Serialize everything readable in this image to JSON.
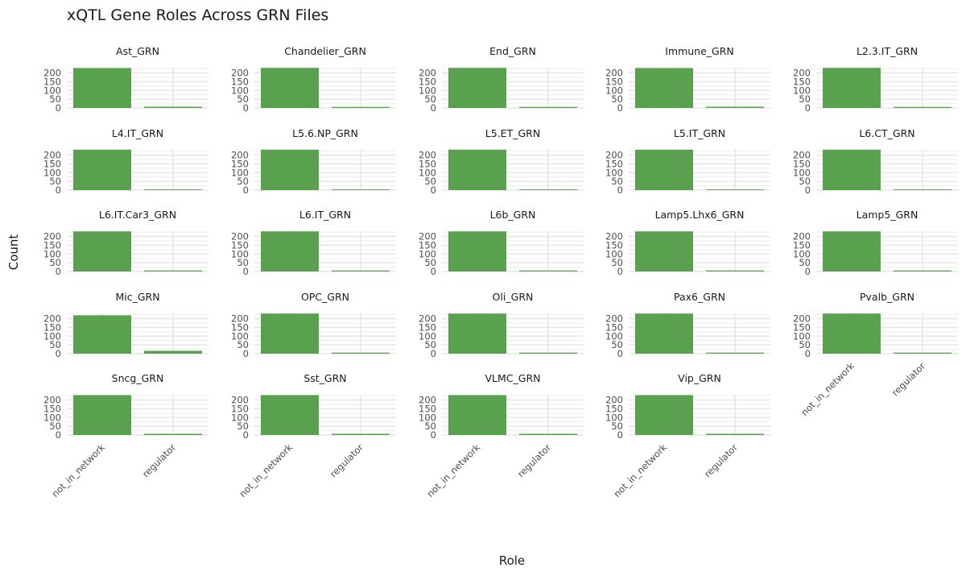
{
  "chart_data": {
    "type": "bar",
    "title": "xQTL Gene Roles Across GRN Files",
    "xlabel": "Role",
    "ylabel": "Count",
    "categories": [
      "not_in_network",
      "regulator"
    ],
    "yticks": [
      0,
      50,
      100,
      150,
      200
    ],
    "ylim": [
      0,
      230
    ],
    "color": "#59a14f",
    "panels": [
      {
        "name": "Ast_GRN",
        "values": [
          228,
          7
        ]
      },
      {
        "name": "Chandelier_GRN",
        "values": [
          229,
          6
        ]
      },
      {
        "name": "End_GRN",
        "values": [
          229,
          6
        ]
      },
      {
        "name": "Immune_GRN",
        "values": [
          228,
          7
        ]
      },
      {
        "name": "L2.3.IT_GRN",
        "values": [
          229,
          6
        ]
      },
      {
        "name": "L4.IT_GRN",
        "values": [
          231,
          4
        ]
      },
      {
        "name": "L5.6.NP_GRN",
        "values": [
          231,
          4
        ]
      },
      {
        "name": "L5.ET_GRN",
        "values": [
          231,
          4
        ]
      },
      {
        "name": "L5.IT_GRN",
        "values": [
          231,
          4
        ]
      },
      {
        "name": "L6.CT_GRN",
        "values": [
          231,
          4
        ]
      },
      {
        "name": "L6.IT.Car3_GRN",
        "values": [
          229,
          6
        ]
      },
      {
        "name": "L6.IT_GRN",
        "values": [
          229,
          6
        ]
      },
      {
        "name": "L6b_GRN",
        "values": [
          229,
          6
        ]
      },
      {
        "name": "Lamp5.Lhx6_GRN",
        "values": [
          229,
          6
        ]
      },
      {
        "name": "Lamp5_GRN",
        "values": [
          229,
          6
        ]
      },
      {
        "name": "Mic_GRN",
        "values": [
          219,
          16
        ]
      },
      {
        "name": "OPC_GRN",
        "values": [
          229,
          6
        ]
      },
      {
        "name": "Oli_GRN",
        "values": [
          229,
          6
        ]
      },
      {
        "name": "Pax6_GRN",
        "values": [
          229,
          6
        ]
      },
      {
        "name": "Pvalb_GRN",
        "values": [
          229,
          6
        ]
      },
      {
        "name": "Sncg_GRN",
        "values": [
          228,
          7
        ]
      },
      {
        "name": "Sst_GRN",
        "values": [
          228,
          7
        ]
      },
      {
        "name": "VLMC_GRN",
        "values": [
          228,
          7
        ]
      },
      {
        "name": "Vip_GRN",
        "values": [
          228,
          7
        ]
      }
    ]
  }
}
